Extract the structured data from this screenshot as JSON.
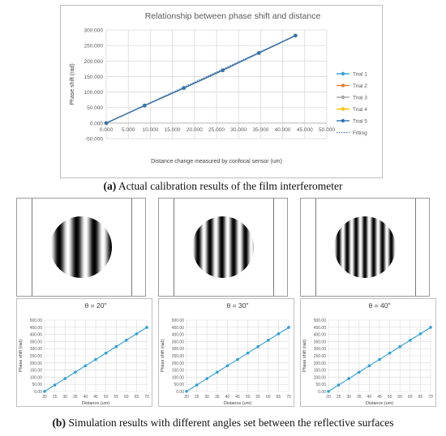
{
  "top_chart": {
    "title": "Relationship between phase shift and distance",
    "ylabel": "Phase shift (rad)",
    "xlabel": "Distance change measured by confocal sensor (um)",
    "y_ticks": [
      "300.000",
      "250.000",
      "200.000",
      "150.000",
      "100.000",
      "50.000",
      "0.000",
      "-50.000"
    ],
    "x_ticks": [
      "0.000",
      "5.000",
      "10.000",
      "15.000",
      "20.000",
      "25.000",
      "30.000",
      "35.000",
      "40.000",
      "45.000",
      "50.000"
    ],
    "legend": [
      {
        "label": "Trial 1",
        "color": "#2e9fd8",
        "style": "marker-line"
      },
      {
        "label": "Trial 2",
        "color": "#ed7d31",
        "style": "marker-line"
      },
      {
        "label": "Trial 3",
        "color": "#a5a5a5",
        "style": "marker-line"
      },
      {
        "label": "Trial 4",
        "color": "#ffc000",
        "style": "marker-line"
      },
      {
        "label": "Trial 5",
        "color": "#2e75b6",
        "style": "marker-line"
      },
      {
        "label": "Fitting",
        "color": "#4472c4",
        "style": "dotted"
      }
    ]
  },
  "captions": {
    "a_label": "(a)",
    "a_text": " Actual calibration results of the film interferometer",
    "b_label": "(b)",
    "b_text": " Simulation results with different angles set between the reflective surfaces"
  },
  "fringes": [
    {
      "angle": "θ = 20″",
      "stripes": 3.5
    },
    {
      "angle": "θ = 30″",
      "stripes": 5.2
    },
    {
      "angle": "θ = 40″",
      "stripes": 7.0
    }
  ],
  "small_chart": {
    "y_ticks": [
      "500.00",
      "450.00",
      "400.00",
      "350.00",
      "300.00",
      "250.00",
      "200.00",
      "150.00",
      "100.00",
      "50.00",
      "0.00"
    ],
    "x_ticks": [
      "20",
      "25",
      "30",
      "35",
      "40",
      "45",
      "50",
      "55",
      "60",
      "65",
      "70"
    ],
    "ylabel": "Phase shift (rad)",
    "xlabel": "Distance (um)"
  },
  "colors": {
    "series": "#2e9fd8",
    "fit": "#2e75b6",
    "grid": "#d9d9d9"
  },
  "chart_data": [
    {
      "type": "line",
      "title": "Relationship between phase shift and distance",
      "xlabel": "Distance change measured by confocal sensor (um)",
      "ylabel": "Phase shift (rad)",
      "xlim": [
        0,
        50
      ],
      "ylim": [
        -50,
        300
      ],
      "grid": true,
      "legend_position": "right",
      "series": [
        {
          "name": "Trial 1",
          "x": [
            0,
            8.7,
            17.6,
            26.4,
            34.6,
            42.9
          ],
          "y": [
            0,
            56.5,
            113,
            170,
            226,
            282
          ]
        },
        {
          "name": "Trial 2",
          "x": [
            0,
            8.7,
            17.6,
            26.4,
            34.6,
            42.9
          ],
          "y": [
            0,
            56.5,
            113,
            170,
            226,
            282
          ]
        },
        {
          "name": "Trial 3",
          "x": [
            0,
            8.7,
            17.6,
            26.4,
            34.6,
            42.9
          ],
          "y": [
            0,
            56.5,
            113,
            170,
            226,
            282
          ]
        },
        {
          "name": "Trial 4",
          "x": [
            0,
            8.7,
            17.6,
            26.4,
            34.6,
            42.9
          ],
          "y": [
            0,
            56.5,
            113,
            170,
            226,
            282
          ]
        },
        {
          "name": "Trial 5",
          "x": [
            0,
            8.7,
            17.6,
            26.4,
            34.6,
            42.9
          ],
          "y": [
            0,
            56.5,
            113,
            170,
            226,
            282
          ]
        },
        {
          "name": "Fitting",
          "x": [
            0,
            43
          ],
          "y": [
            0,
            283
          ]
        }
      ]
    },
    {
      "type": "line",
      "title": "θ = 20″",
      "xlabel": "Distance (um)",
      "ylabel": "Phase shift (rad)",
      "xlim": [
        20,
        70
      ],
      "ylim": [
        0,
        500
      ],
      "grid": true,
      "series": [
        {
          "x": [
            20,
            25,
            30,
            35,
            40,
            45,
            50,
            55,
            60,
            65,
            70
          ],
          "y": [
            0,
            45,
            90,
            135,
            180,
            224,
            269,
            314,
            359,
            404,
            449
          ]
        }
      ]
    },
    {
      "type": "line",
      "title": "θ = 30″",
      "xlabel": "Distance (um)",
      "ylabel": "Phase shift (rad)",
      "xlim": [
        20,
        70
      ],
      "ylim": [
        0,
        500
      ],
      "grid": true,
      "series": [
        {
          "x": [
            20,
            25,
            30,
            35,
            40,
            45,
            50,
            55,
            60,
            65,
            70
          ],
          "y": [
            0,
            45,
            90,
            135,
            180,
            224,
            269,
            314,
            359,
            404,
            449
          ]
        }
      ]
    },
    {
      "type": "line",
      "title": "θ = 40″",
      "xlabel": "Distance (um)",
      "ylabel": "Phase shift (rad)",
      "xlim": [
        20,
        70
      ],
      "ylim": [
        0,
        500
      ],
      "grid": true,
      "series": [
        {
          "x": [
            20,
            25,
            30,
            35,
            40,
            45,
            50,
            55,
            60,
            65,
            70
          ],
          "y": [
            0,
            45,
            90,
            135,
            180,
            224,
            269,
            314,
            359,
            404,
            449
          ]
        }
      ]
    }
  ]
}
